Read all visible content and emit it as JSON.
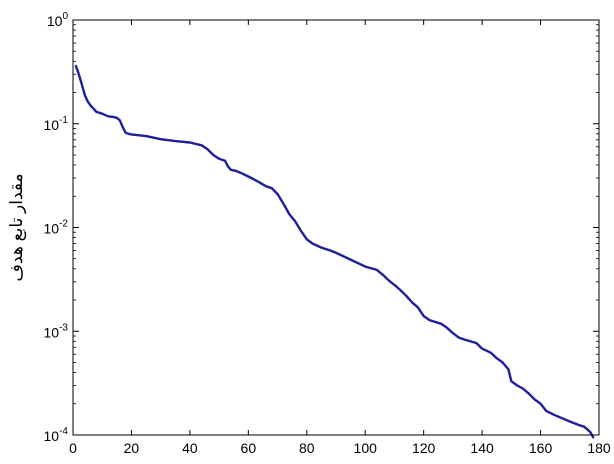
{
  "chart_data": {
    "type": "line",
    "title": "",
    "xlabel": "",
    "ylabel": "مقدار تابع هدف",
    "xlim": [
      0,
      180
    ],
    "ylim": [
      0.0001,
      1
    ],
    "yscale": "log",
    "grid": false,
    "x_ticks": [
      0,
      20,
      40,
      60,
      80,
      100,
      120,
      140,
      160,
      180
    ],
    "x_tick_labels": [
      "0",
      "20",
      "40",
      "60",
      "80",
      "100",
      "120",
      "140",
      "160",
      "180"
    ],
    "y_ticks": [
      {
        "value": 1,
        "base": "10",
        "exp": "0"
      },
      {
        "value": 0.1,
        "base": "10",
        "exp": "-1"
      },
      {
        "value": 0.01,
        "base": "10",
        "exp": "-2"
      },
      {
        "value": 0.001,
        "base": "10",
        "exp": "-3"
      },
      {
        "value": 0.0001,
        "base": "10",
        "exp": "-4"
      }
    ],
    "series": [
      {
        "color": "#1f1f9e",
        "x": [
          1,
          2,
          3,
          4,
          5,
          6,
          7,
          8,
          10,
          12,
          14,
          15,
          16,
          17,
          18,
          19,
          20,
          25,
          30,
          35,
          40,
          44,
          46,
          48,
          50,
          52,
          53,
          54,
          56,
          58,
          60,
          62,
          64,
          66,
          68,
          70,
          72,
          74,
          76,
          78,
          80,
          82,
          85,
          88,
          90,
          95,
          100,
          104,
          106,
          108,
          110,
          112,
          114,
          116,
          118,
          120,
          122,
          126,
          128,
          130,
          132,
          134,
          138,
          140,
          143,
          145,
          147,
          149,
          150,
          152,
          154,
          156,
          158,
          160,
          162,
          165,
          170,
          173,
          175,
          177,
          178
        ],
        "y": [
          0.36,
          0.3,
          0.24,
          0.19,
          0.165,
          0.15,
          0.14,
          0.13,
          0.125,
          0.118,
          0.116,
          0.114,
          0.108,
          0.093,
          0.082,
          0.08,
          0.079,
          0.076,
          0.071,
          0.068,
          0.066,
          0.062,
          0.057,
          0.05,
          0.046,
          0.044,
          0.039,
          0.036,
          0.035,
          0.033,
          0.031,
          0.029,
          0.027,
          0.025,
          0.024,
          0.021,
          0.017,
          0.0135,
          0.0115,
          0.0093,
          0.0077,
          0.007,
          0.0064,
          0.006,
          0.0057,
          0.0049,
          0.0042,
          0.0039,
          0.0035,
          0.0031,
          0.0028,
          0.0025,
          0.0022,
          0.0019,
          0.0017,
          0.0014,
          0.00128,
          0.00118,
          0.00108,
          0.00096,
          0.00087,
          0.00083,
          0.00077,
          0.00068,
          0.00062,
          0.00055,
          0.0005,
          0.00043,
          0.00033,
          0.0003,
          0.00028,
          0.00025,
          0.00022,
          0.0002,
          0.00017,
          0.000155,
          0.000135,
          0.000125,
          0.00012,
          0.000107,
          9.5e-05
        ]
      }
    ]
  }
}
